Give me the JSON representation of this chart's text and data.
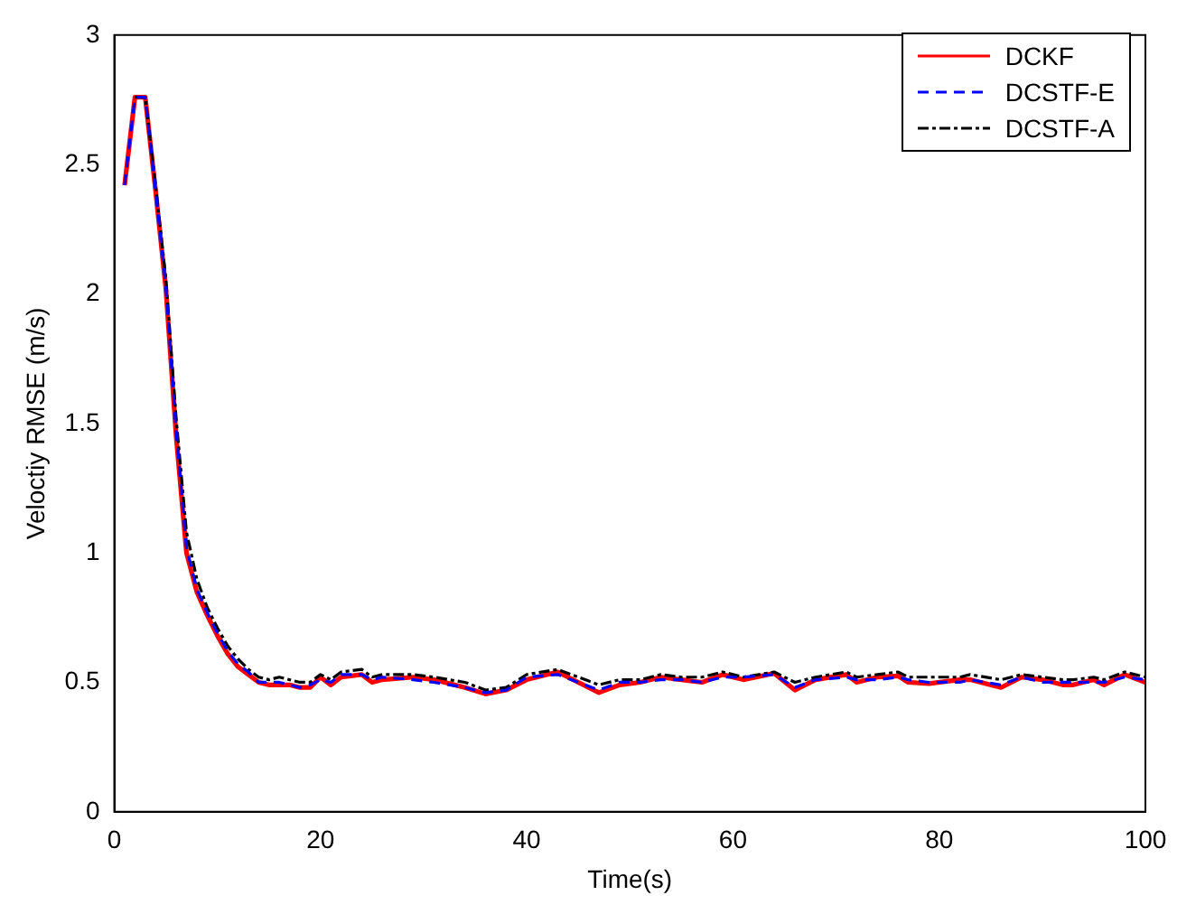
{
  "chart_data": {
    "type": "line",
    "xlabel": "Time(s)",
    "ylabel": "Veloctiy RMSE (m/s)",
    "xlim": [
      0,
      100
    ],
    "ylim": [
      0,
      3
    ],
    "xticks": [
      0,
      20,
      40,
      60,
      80,
      100
    ],
    "yticks": [
      0,
      0.5,
      1,
      1.5,
      2,
      2.5,
      3
    ],
    "grid": false,
    "legend": "top right",
    "marker": "none",
    "series": [
      {
        "name": "DCKF",
        "color": "#ff0000",
        "line_style": "solid",
        "x": [
          1,
          2,
          3,
          4,
          5,
          6,
          7,
          8,
          9,
          10,
          11,
          12,
          13,
          14,
          15,
          16,
          17,
          18,
          19,
          20,
          21,
          22,
          24,
          25,
          26,
          29,
          31,
          34,
          36,
          38,
          40,
          43,
          45,
          47,
          49,
          51,
          53,
          55,
          57,
          59,
          61,
          64,
          66,
          68,
          71,
          72,
          74,
          76,
          77,
          79,
          82,
          83,
          86,
          88,
          90,
          92,
          93,
          95,
          96,
          98,
          100
        ],
        "values": [
          2.42,
          2.76,
          2.76,
          2.4,
          2.02,
          1.45,
          1.0,
          0.85,
          0.76,
          0.68,
          0.61,
          0.56,
          0.53,
          0.5,
          0.49,
          0.49,
          0.49,
          0.48,
          0.48,
          0.52,
          0.49,
          0.52,
          0.53,
          0.5,
          0.51,
          0.52,
          0.51,
          0.48,
          0.455,
          0.47,
          0.51,
          0.54,
          0.5,
          0.46,
          0.49,
          0.5,
          0.52,
          0.51,
          0.5,
          0.53,
          0.51,
          0.535,
          0.47,
          0.51,
          0.53,
          0.5,
          0.52,
          0.525,
          0.5,
          0.495,
          0.51,
          0.51,
          0.48,
          0.52,
          0.51,
          0.49,
          0.49,
          0.51,
          0.49,
          0.53,
          0.5
        ]
      },
      {
        "name": "DCSTF-E",
        "color": "#0000ff",
        "line_style": "dashed",
        "x": [
          1,
          2,
          3,
          4,
          5,
          6,
          7,
          8,
          9,
          10,
          11,
          12,
          13,
          14,
          15,
          16,
          17,
          18,
          19,
          20,
          21,
          22,
          24,
          25,
          26,
          29,
          31,
          34,
          36,
          38,
          40,
          43,
          45,
          47,
          49,
          51,
          53,
          55,
          57,
          59,
          61,
          64,
          66,
          68,
          71,
          72,
          74,
          76,
          77,
          79,
          82,
          83,
          86,
          88,
          90,
          92,
          93,
          95,
          96,
          98,
          100
        ],
        "values": [
          2.42,
          2.76,
          2.76,
          2.4,
          2.03,
          1.47,
          1.02,
          0.86,
          0.77,
          0.69,
          0.62,
          0.57,
          0.54,
          0.5,
          0.5,
          0.5,
          0.49,
          0.48,
          0.49,
          0.51,
          0.5,
          0.53,
          0.53,
          0.51,
          0.52,
          0.51,
          0.5,
          0.48,
          0.46,
          0.47,
          0.52,
          0.53,
          0.5,
          0.47,
          0.5,
          0.5,
          0.51,
          0.51,
          0.5,
          0.52,
          0.52,
          0.53,
          0.48,
          0.51,
          0.52,
          0.51,
          0.51,
          0.52,
          0.51,
          0.5,
          0.5,
          0.51,
          0.49,
          0.52,
          0.5,
          0.5,
          0.5,
          0.5,
          0.5,
          0.52,
          0.51
        ]
      },
      {
        "name": "DCSTF-A",
        "color": "#000000",
        "line_style": "dashdot",
        "x": [
          2,
          3,
          4,
          5,
          6,
          7,
          8,
          9,
          10,
          11,
          12,
          13,
          14,
          15,
          16,
          17,
          18,
          19,
          20,
          21,
          22,
          24,
          25,
          26,
          29,
          31,
          34,
          36,
          38,
          40,
          43,
          45,
          47,
          49,
          51,
          53,
          55,
          57,
          59,
          61,
          64,
          66,
          68,
          71,
          72,
          74,
          76,
          77,
          79,
          82,
          83,
          86,
          88,
          90,
          92,
          93,
          95,
          96,
          98,
          100
        ],
        "values": [
          2.76,
          2.76,
          2.42,
          2.06,
          1.52,
          1.08,
          0.9,
          0.79,
          0.71,
          0.64,
          0.59,
          0.55,
          0.52,
          0.51,
          0.52,
          0.51,
          0.5,
          0.5,
          0.53,
          0.51,
          0.54,
          0.55,
          0.52,
          0.53,
          0.53,
          0.52,
          0.5,
          0.47,
          0.48,
          0.53,
          0.55,
          0.52,
          0.49,
          0.51,
          0.51,
          0.53,
          0.52,
          0.52,
          0.54,
          0.52,
          0.54,
          0.5,
          0.52,
          0.54,
          0.52,
          0.53,
          0.54,
          0.52,
          0.52,
          0.52,
          0.53,
          0.51,
          0.53,
          0.52,
          0.51,
          0.51,
          0.52,
          0.51,
          0.54,
          0.52
        ]
      }
    ]
  }
}
